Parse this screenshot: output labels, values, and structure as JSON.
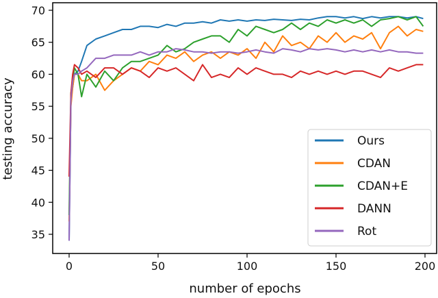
{
  "chart_data": {
    "type": "line",
    "title": "",
    "xlabel": "number of epochs",
    "ylabel": "testing accuracy",
    "xlim": [
      -5,
      205
    ],
    "ylim": [
      33,
      70.7
    ],
    "xticks": [
      0,
      50,
      100,
      150,
      200
    ],
    "yticks": [
      35,
      40,
      45,
      50,
      55,
      60,
      65,
      70
    ],
    "grid": false,
    "legend_position": "lower-right",
    "x": [
      0,
      1,
      2,
      3,
      5,
      7,
      10,
      15,
      20,
      25,
      30,
      35,
      40,
      45,
      50,
      55,
      60,
      65,
      70,
      75,
      80,
      85,
      90,
      95,
      100,
      105,
      110,
      115,
      120,
      125,
      130,
      135,
      140,
      145,
      150,
      155,
      160,
      165,
      170,
      175,
      180,
      185,
      190,
      195,
      199
    ],
    "series": [
      {
        "name": "Ours",
        "color": "#1f77b4",
        "values": [
          34,
          56,
          58,
          60,
          60.5,
          62,
          64.5,
          65.5,
          66,
          66.5,
          67,
          67,
          67.5,
          67.5,
          67.3,
          67.8,
          67.5,
          68,
          68,
          68.2,
          68,
          68.5,
          68.3,
          68.5,
          68.3,
          68.5,
          68.4,
          68.6,
          68.5,
          68.4,
          68.6,
          68.5,
          68.8,
          69,
          69,
          68.8,
          69,
          68.7,
          69,
          68.8,
          69,
          69,
          68.8,
          69,
          68.7
        ]
      },
      {
        "name": "CDAN",
        "color": "#ff7f0e",
        "values": [
          37,
          55,
          58,
          60,
          60,
          59,
          59,
          60,
          57.5,
          59,
          60,
          61,
          60.5,
          62,
          61.5,
          63,
          62.5,
          63.5,
          62,
          63,
          63.5,
          62.5,
          63.5,
          63,
          64,
          62.5,
          65,
          63.5,
          66,
          64.5,
          65,
          64,
          66,
          65,
          66.5,
          65,
          66,
          65.5,
          66.5,
          64,
          66.5,
          67.5,
          66,
          67,
          66.7
        ]
      },
      {
        "name": "CDAN+E",
        "color": "#2ca02c",
        "values": [
          38,
          57,
          59,
          61,
          60,
          56.5,
          60,
          58,
          60.5,
          59,
          61,
          62,
          62,
          62.5,
          63,
          64.5,
          63.5,
          64,
          65,
          65.5,
          66,
          66,
          65,
          67,
          66,
          67.5,
          67,
          66.5,
          67,
          68,
          67,
          68,
          67.5,
          68.5,
          68,
          68.5,
          68,
          68.5,
          67.5,
          68.5,
          68.7,
          69,
          68.5,
          69,
          67.5
        ]
      },
      {
        "name": "DANN",
        "color": "#d62728",
        "values": [
          44,
          57,
          60,
          61.5,
          61,
          60,
          60.5,
          59.5,
          61,
          61,
          60,
          61,
          60.5,
          59.5,
          61,
          60.5,
          61,
          60,
          59,
          61.5,
          59.5,
          60,
          59.5,
          61,
          60,
          61,
          60.5,
          60,
          60,
          59.5,
          60.5,
          60,
          60.5,
          60,
          60.5,
          60,
          60.5,
          60.5,
          60,
          59.5,
          61,
          60.5,
          61,
          61.5,
          61.5
        ]
      },
      {
        "name": "Rot",
        "color": "#9467bd",
        "values": [
          34,
          56,
          59,
          60,
          60,
          60.5,
          61,
          62.5,
          62.5,
          63,
          63,
          63,
          63.5,
          63,
          63.5,
          63.5,
          64,
          63.8,
          63.5,
          63.5,
          63.3,
          63.5,
          63.5,
          63.3,
          63.5,
          63.8,
          63.5,
          63.3,
          64,
          63.8,
          63.5,
          64,
          63.8,
          64,
          63.8,
          63.5,
          63.8,
          63.5,
          63.8,
          63.5,
          63.8,
          63.5,
          63.5,
          63.3,
          63.3
        ]
      }
    ]
  }
}
